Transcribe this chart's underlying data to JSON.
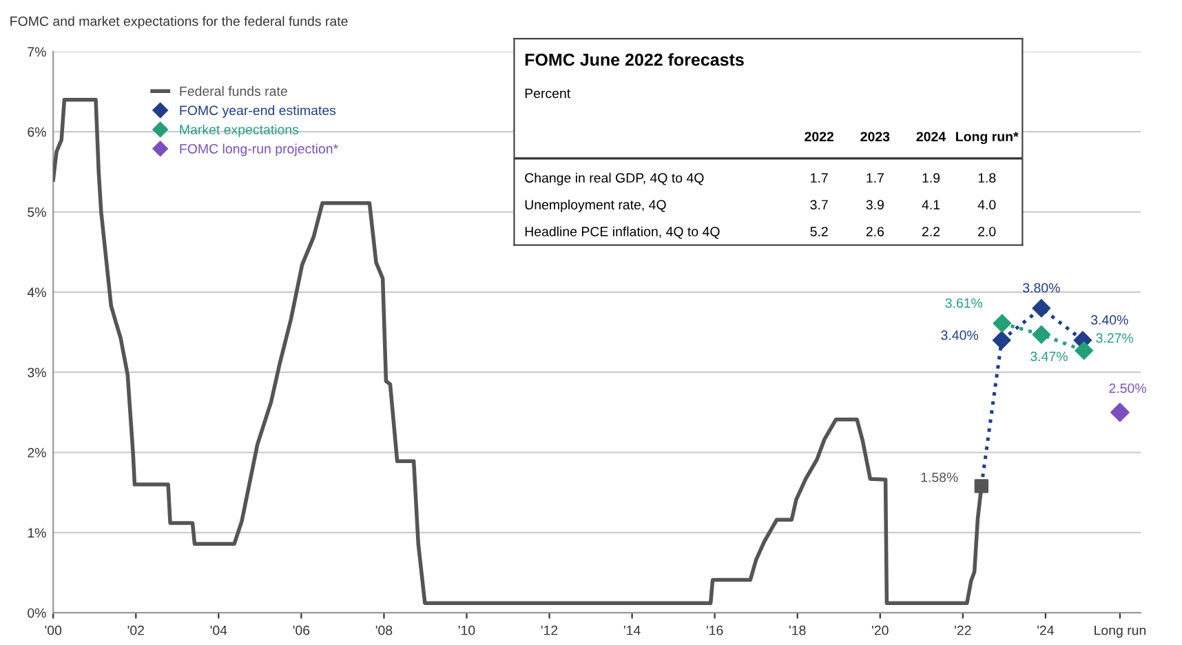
{
  "chart_data": [
    {
      "type": "line",
      "title": "FOMC and market expectations for the federal funds rate",
      "xlim": [
        2000,
        2026.3
      ],
      "ylim": [
        0,
        7
      ],
      "xticks": [
        {
          "value": 2000,
          "label": "'00"
        },
        {
          "value": 2002,
          "label": "'02"
        },
        {
          "value": 2004,
          "label": "'04"
        },
        {
          "value": 2006,
          "label": "'06"
        },
        {
          "value": 2008,
          "label": "'08"
        },
        {
          "value": 2010,
          "label": "'10"
        },
        {
          "value": 2012,
          "label": "'12"
        },
        {
          "value": 2014,
          "label": "'14"
        },
        {
          "value": 2016,
          "label": "'16"
        },
        {
          "value": 2018,
          "label": "'18"
        },
        {
          "value": 2020,
          "label": "'20"
        },
        {
          "value": 2022,
          "label": "'22"
        },
        {
          "value": 2024,
          "label": "'24"
        },
        {
          "value": 2025.8,
          "label": "Long run"
        }
      ],
      "yticks": [
        {
          "value": 0,
          "label": "0%"
        },
        {
          "value": 1,
          "label": "1%"
        },
        {
          "value": 2,
          "label": "2%"
        },
        {
          "value": 3,
          "label": "3%"
        },
        {
          "value": 4,
          "label": "4%"
        },
        {
          "value": 5,
          "label": "5%"
        },
        {
          "value": 6,
          "label": "6%"
        },
        {
          "value": 7,
          "label": "7%"
        }
      ],
      "grid": "y",
      "legend": "top left",
      "series": [
        {
          "name": "Federal funds rate",
          "type": "line",
          "color": "#555555",
          "line_style": "solid",
          "marker": "none",
          "x": [
            2000.0,
            2000.08,
            2000.2,
            2000.27,
            2001.03,
            2001.1,
            2001.16,
            2001.4,
            2001.53,
            2001.63,
            2001.8,
            2001.93,
            2001.97,
            2002.78,
            2002.83,
            2003.37,
            2003.42,
            2004.38,
            2004.56,
            2004.94,
            2005.27,
            2005.48,
            2005.75,
            2006.02,
            2006.3,
            2006.51,
            2007.65,
            2007.81,
            2007.97,
            2008.05,
            2008.15,
            2008.32,
            2008.72,
            2008.83,
            2008.99,
            2015.9,
            2015.95,
            2016.86,
            2017.0,
            2017.2,
            2017.5,
            2017.86,
            2017.97,
            2018.2,
            2018.47,
            2018.65,
            2018.93,
            2019.44,
            2019.58,
            2019.76,
            2020.13,
            2020.16,
            2022.1,
            2022.2,
            2022.28,
            2022.36,
            2022.45
          ],
          "values": [
            5.4,
            5.75,
            5.9,
            6.4,
            6.4,
            5.5,
            5.0,
            3.83,
            3.6,
            3.43,
            2.97,
            2.0,
            1.6,
            1.6,
            1.12,
            1.12,
            0.86,
            0.86,
            1.14,
            2.1,
            2.63,
            3.11,
            3.66,
            4.34,
            4.69,
            5.11,
            5.11,
            4.37,
            4.17,
            2.89,
            2.85,
            1.89,
            1.89,
            0.86,
            0.12,
            0.12,
            0.41,
            0.41,
            0.66,
            0.89,
            1.16,
            1.16,
            1.41,
            1.67,
            1.91,
            2.16,
            2.41,
            2.41,
            2.14,
            1.67,
            1.66,
            0.12,
            0.12,
            0.4,
            0.51,
            1.17,
            1.58
          ]
        },
        {
          "type": "line",
          "color": "#1f3f8a",
          "line_style": "dotted",
          "x": [
            2022.45,
            2022.94
          ],
          "values": [
            1.58,
            3.4
          ]
        },
        {
          "type": "scatter",
          "color": "#555555",
          "marker": "square",
          "x": [
            2022.45
          ],
          "values": [
            1.58
          ],
          "value_labels": [
            "1.58%"
          ]
        },
        {
          "name": "FOMC year-end estimates",
          "type": "line",
          "color": "#1f3f8a",
          "line_style": "dotted",
          "marker": "diamond",
          "x": [
            2022.94,
            2023.9,
            2024.9
          ],
          "values": [
            3.4,
            3.8,
            3.4
          ],
          "value_labels": [
            "3.40%",
            "3.80%",
            "3.40%"
          ]
        },
        {
          "name": "Market expectations",
          "type": "line",
          "color": "#23a07a",
          "line_style": "dotted",
          "marker": "diamond",
          "x": [
            2022.95,
            2023.9,
            2024.93
          ],
          "values": [
            3.61,
            3.47,
            3.27
          ],
          "value_labels": [
            "3.61%",
            "3.47%",
            "3.27%"
          ]
        },
        {
          "name": "FOMC long-run projection*",
          "type": "scatter",
          "color": "#7b4fc0",
          "marker": "diamond",
          "x": [
            2025.8
          ],
          "values": [
            2.5
          ],
          "value_labels": [
            "2.50%"
          ]
        }
      ]
    },
    {
      "type": "other",
      "title": "FOMC June 2022 forecasts",
      "subtitle": "Percent",
      "annotations": [
        "2022",
        "2023",
        "2024",
        "Long run*",
        "Change in real GDP, 4Q to 4Q",
        "1.7",
        "1.7",
        "1.9",
        "1.8",
        "Unemployment rate, 4Q",
        "3.7",
        "3.9",
        "4.1",
        "4.0",
        "Headline PCE inflation, 4Q to 4Q",
        "5.2",
        "2.6",
        "2.2",
        "2.0"
      ]
    }
  ]
}
